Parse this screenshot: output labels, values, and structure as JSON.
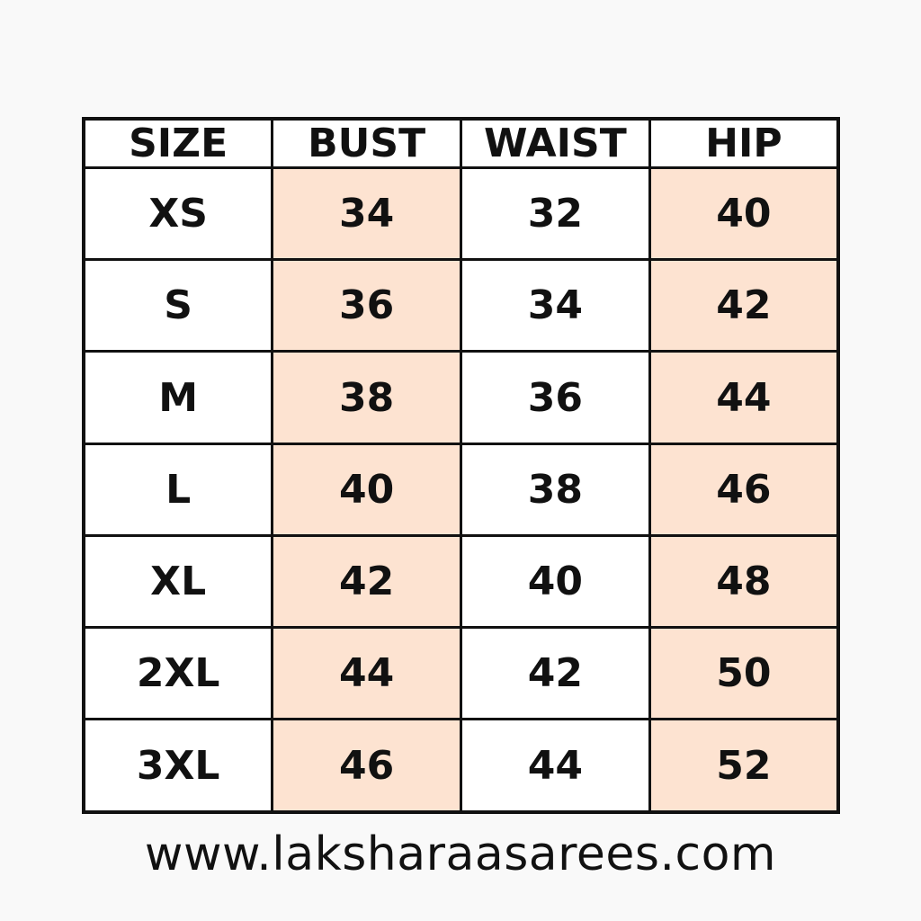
{
  "table": {
    "headers": [
      "SIZE",
      "BUST",
      "WAIST",
      "HIP"
    ],
    "rows": [
      [
        "XS",
        "34",
        "32",
        "40"
      ],
      [
        "S",
        "36",
        "34",
        "42"
      ],
      [
        "M",
        "38",
        "36",
        "44"
      ],
      [
        "L",
        "40",
        "38",
        "46"
      ],
      [
        "XL",
        "42",
        "40",
        "48"
      ],
      [
        "2XL",
        "44",
        "42",
        "50"
      ],
      [
        "3XL",
        "46",
        "44",
        "52"
      ]
    ],
    "highlight_color": "#fde3d1"
  },
  "footer": {
    "website": "www.laksharaasarees.com"
  }
}
